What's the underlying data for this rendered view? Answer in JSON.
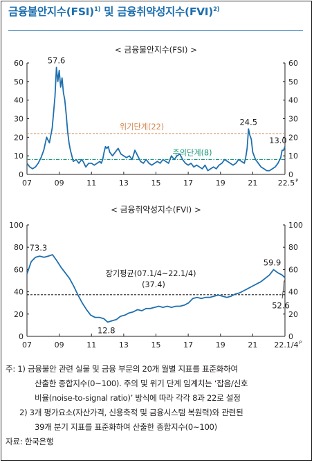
{
  "header": {
    "title_main": "금융불안지수(FSI)",
    "title_sup1": "1)",
    "title_and": " 및 ",
    "title_second": "금융취약성지수(FVI)",
    "title_sup2": "2)"
  },
  "chart_data": [
    {
      "type": "line",
      "title": "< 금융불안지수(FSI) >",
      "x_tick_labels": [
        "07",
        "09",
        "11",
        "13",
        "15",
        "17",
        "19",
        "21",
        "22.5"
      ],
      "x_tick_last_suffix": "P",
      "x_range": [
        "2007-01",
        "2022-05"
      ],
      "ylim": [
        0,
        60
      ],
      "y_ticks": [
        0,
        10,
        20,
        30,
        40,
        50,
        60
      ],
      "right_axis": true,
      "grid": false,
      "thresholds": [
        {
          "name": "위기단계(22)",
          "value": 22,
          "color": "#d3874e"
        },
        {
          "name": "주의단계(8)",
          "value": 8,
          "color": "#1a9a78"
        }
      ],
      "annotations": [
        {
          "text": "57.6",
          "x": "2008-10",
          "y": 57.6
        },
        {
          "text": "24.5",
          "x": "2020-03",
          "y": 24.5
        },
        {
          "text": "13.0",
          "x": "2022-03",
          "y": 13.0
        }
      ],
      "series": [
        {
          "color": "#1e6fae",
          "points": [
            [
              "2007-01",
              6
            ],
            [
              "2007-03",
              4
            ],
            [
              "2007-05",
              3
            ],
            [
              "2007-07",
              4
            ],
            [
              "2007-09",
              6
            ],
            [
              "2007-11",
              9
            ],
            [
              "2008-01",
              13
            ],
            [
              "2008-03",
              20
            ],
            [
              "2008-05",
              17
            ],
            [
              "2008-07",
              25
            ],
            [
              "2008-09",
              42
            ],
            [
              "2008-10",
              57.6
            ],
            [
              "2008-11",
              50
            ],
            [
              "2008-12",
              56
            ],
            [
              "2009-01",
              47
            ],
            [
              "2009-02",
              52
            ],
            [
              "2009-03",
              44
            ],
            [
              "2009-04",
              40
            ],
            [
              "2009-05",
              32
            ],
            [
              "2009-06",
              23
            ],
            [
              "2009-07",
              17
            ],
            [
              "2009-08",
              13
            ],
            [
              "2009-09",
              10
            ],
            [
              "2009-10",
              7
            ],
            [
              "2009-12",
              8
            ],
            [
              "2010-02",
              6
            ],
            [
              "2010-04",
              8
            ],
            [
              "2010-05",
              7
            ],
            [
              "2010-07",
              4
            ],
            [
              "2010-09",
              6
            ],
            [
              "2010-11",
              6
            ],
            [
              "2011-01",
              5
            ],
            [
              "2011-03",
              6
            ],
            [
              "2011-05",
              7
            ],
            [
              "2011-06",
              6
            ],
            [
              "2011-07",
              8
            ],
            [
              "2011-08",
              12
            ],
            [
              "2011-09",
              15
            ],
            [
              "2011-10",
              14
            ],
            [
              "2011-11",
              15
            ],
            [
              "2011-12",
              12
            ],
            [
              "2012-02",
              10
            ],
            [
              "2012-04",
              12
            ],
            [
              "2012-06",
              14
            ],
            [
              "2012-08",
              11
            ],
            [
              "2012-10",
              10
            ],
            [
              "2012-12",
              9
            ],
            [
              "2013-02",
              10
            ],
            [
              "2013-04",
              8
            ],
            [
              "2013-06",
              13
            ],
            [
              "2013-08",
              10
            ],
            [
              "2013-10",
              7
            ],
            [
              "2013-12",
              6
            ],
            [
              "2014-02",
              8
            ],
            [
              "2014-04",
              6
            ],
            [
              "2014-06",
              5
            ],
            [
              "2014-08",
              6
            ],
            [
              "2014-10",
              7
            ],
            [
              "2014-12",
              6
            ],
            [
              "2015-02",
              8
            ],
            [
              "2015-04",
              7
            ],
            [
              "2015-06",
              6
            ],
            [
              "2015-08",
              10
            ],
            [
              "2015-10",
              8
            ],
            [
              "2015-12",
              10
            ],
            [
              "2016-02",
              11
            ],
            [
              "2016-04",
              8
            ],
            [
              "2016-06",
              6
            ],
            [
              "2016-08",
              5
            ],
            [
              "2016-10",
              6
            ],
            [
              "2016-12",
              4
            ],
            [
              "2017-02",
              5
            ],
            [
              "2017-04",
              4
            ],
            [
              "2017-06",
              3
            ],
            [
              "2017-08",
              5
            ],
            [
              "2017-10",
              2
            ],
            [
              "2017-12",
              3
            ],
            [
              "2018-02",
              4
            ],
            [
              "2018-04",
              3
            ],
            [
              "2018-06",
              5
            ],
            [
              "2018-08",
              6
            ],
            [
              "2018-10",
              8
            ],
            [
              "2018-12",
              7
            ],
            [
              "2019-02",
              6
            ],
            [
              "2019-04",
              5
            ],
            [
              "2019-06",
              6
            ],
            [
              "2019-08",
              8
            ],
            [
              "2019-10",
              7
            ],
            [
              "2019-12",
              6
            ],
            [
              "2020-01",
              9
            ],
            [
              "2020-02",
              14
            ],
            [
              "2020-03",
              24.5
            ],
            [
              "2020-04",
              21
            ],
            [
              "2020-05",
              19
            ],
            [
              "2020-06",
              12
            ],
            [
              "2020-08",
              8
            ],
            [
              "2020-10",
              6
            ],
            [
              "2020-12",
              4
            ],
            [
              "2021-02",
              3
            ],
            [
              "2021-04",
              2
            ],
            [
              "2021-06",
              2
            ],
            [
              "2021-08",
              3
            ],
            [
              "2021-10",
              4
            ],
            [
              "2021-12",
              6
            ],
            [
              "2022-02",
              9
            ],
            [
              "2022-03",
              13
            ],
            [
              "2022-04",
              13
            ],
            [
              "2022-05",
              15
            ]
          ]
        }
      ]
    },
    {
      "type": "line",
      "title": "< 금융취약성지수(FVI) >",
      "x_tick_labels": [
        "07",
        "09",
        "11",
        "13",
        "15",
        "17",
        "19",
        "21",
        "22.1/4"
      ],
      "x_tick_last_suffix": "P",
      "x_range": [
        "2007-01",
        "2022-03"
      ],
      "ylim": [
        0,
        100
      ],
      "y_ticks": [
        0,
        20,
        40,
        60,
        80,
        100
      ],
      "right_axis": true,
      "grid": false,
      "reference": {
        "name": "장기평균(07.1/4~22.1/4)",
        "value_label": "(37.4)",
        "value": 37.4
      },
      "annotations": [
        {
          "text": "73.3",
          "x": "2007-09",
          "y": 73.3
        },
        {
          "text": "12.8",
          "x": "2011-09",
          "y": 12.8
        },
        {
          "text": "59.9",
          "x": "2021-06",
          "y": 59.9
        },
        {
          "text": "52.6",
          "x": "2022-03",
          "y": 52.6
        }
      ],
      "series": [
        {
          "color": "#1e6fae",
          "points": [
            [
              "2007-01",
              56
            ],
            [
              "2007-04",
              67
            ],
            [
              "2007-07",
              71
            ],
            [
              "2007-10",
              72
            ],
            [
              "2008-01",
              71
            ],
            [
              "2008-04",
              72
            ],
            [
              "2008-07",
              73.3
            ],
            [
              "2008-10",
              68
            ],
            [
              "2009-01",
              62
            ],
            [
              "2009-04",
              57
            ],
            [
              "2009-07",
              52
            ],
            [
              "2009-10",
              45
            ],
            [
              "2010-01",
              37
            ],
            [
              "2010-04",
              30
            ],
            [
              "2010-07",
              24
            ],
            [
              "2010-10",
              19
            ],
            [
              "2011-01",
              17
            ],
            [
              "2011-04",
              17
            ],
            [
              "2011-07",
              16
            ],
            [
              "2011-10",
              12.8
            ],
            [
              "2012-01",
              14
            ],
            [
              "2012-04",
              15
            ],
            [
              "2012-07",
              18
            ],
            [
              "2012-10",
              19
            ],
            [
              "2013-01",
              21
            ],
            [
              "2013-04",
              22
            ],
            [
              "2013-07",
              24
            ],
            [
              "2013-10",
              23
            ],
            [
              "2014-01",
              25
            ],
            [
              "2014-04",
              25
            ],
            [
              "2014-07",
              26
            ],
            [
              "2014-10",
              27
            ],
            [
              "2015-01",
              26
            ],
            [
              "2015-04",
              27
            ],
            [
              "2015-07",
              26
            ],
            [
              "2015-10",
              27
            ],
            [
              "2016-01",
              27
            ],
            [
              "2016-04",
              28
            ],
            [
              "2016-07",
              30
            ],
            [
              "2016-10",
              34
            ],
            [
              "2017-01",
              35
            ],
            [
              "2017-04",
              34
            ],
            [
              "2017-07",
              35
            ],
            [
              "2017-10",
              35
            ],
            [
              "2018-01",
              36
            ],
            [
              "2018-04",
              37
            ],
            [
              "2018-07",
              36
            ],
            [
              "2018-10",
              35
            ],
            [
              "2019-01",
              36
            ],
            [
              "2019-04",
              38
            ],
            [
              "2019-07",
              39
            ],
            [
              "2019-10",
              41
            ],
            [
              "2020-01",
              43
            ],
            [
              "2020-04",
              45
            ],
            [
              "2020-07",
              47
            ],
            [
              "2020-10",
              49
            ],
            [
              "2021-01",
              52
            ],
            [
              "2021-04",
              55
            ],
            [
              "2021-07",
              59.9
            ],
            [
              "2021-10",
              57
            ],
            [
              "2022-01",
              55
            ],
            [
              "2022-03",
              52.6
            ]
          ]
        }
      ]
    }
  ],
  "notes": {
    "n1_prefix": "주: 1) ",
    "n1_line1": "금융불안 관련 실물 및 금융 부문의 20개 월별 지표를 표준화하여",
    "n1_line2": "산출한 종합지수(0~100). 주의 및 위기 단계 임계치는 ‘잡음/신호",
    "n1_line3": "비율(noise-to-signal ratio)’ 방식에 따라 각각 8과 22로 설정",
    "n2_line1": "2) 3개 평가요소(자산가격, 신용축적 및 금융시스템 복원력)와 관련된",
    "n2_line2": "39개 분기 지표를 표준화하여 산출한 종합지수(0~100)",
    "source": "자료: 한국은행"
  }
}
